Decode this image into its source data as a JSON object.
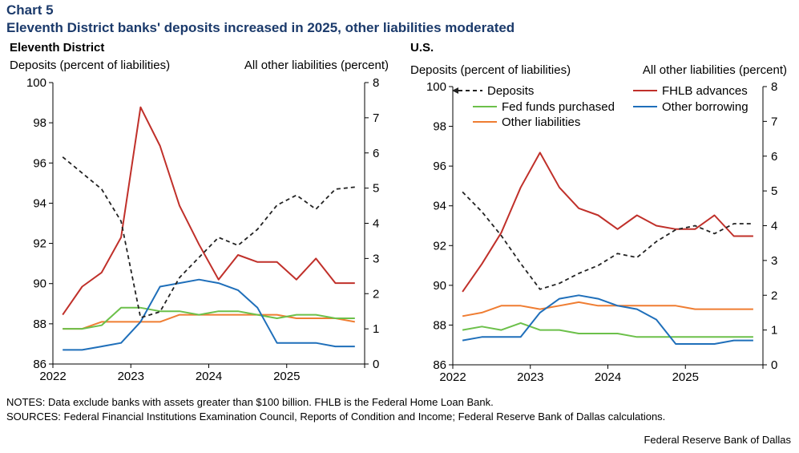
{
  "header": {
    "chart_number": "Chart 5",
    "title": "Eleventh District banks' deposits increased in 2025, other liabilities moderated"
  },
  "notes": "NOTES: Data exclude banks with assets greater than $100 billion. FHLB is the Federal Home Loan Bank.",
  "sources": "SOURCES: Federal Financial Institutions Examination Council, Reports of Condition and Income; Federal Reserve Bank of Dallas calculations.",
  "credit": "Federal Reserve Bank of Dallas",
  "colors": {
    "deposits": "#222222",
    "fhlb": "#c0302a",
    "fed_funds": "#6cc04a",
    "other_borrowing": "#1f6fba",
    "other_liabilities": "#ef7d32"
  },
  "chart_data": [
    {
      "type": "line",
      "panel_title": "Eleventh District",
      "y_left_label": "Deposits (percent of liabilities)",
      "y_right_label": "All other liabilities (percent)",
      "y_left_lim": [
        86,
        100
      ],
      "y_left_ticks": [
        "86",
        "88",
        "90",
        "92",
        "94",
        "96",
        "98",
        "100"
      ],
      "y_right_lim": [
        0,
        8
      ],
      "y_right_ticks": [
        "0",
        "1",
        "2",
        "3",
        "4",
        "5",
        "6",
        "7",
        "8"
      ],
      "x_ticks": [
        "2022",
        "2023",
        "2024",
        "2025"
      ],
      "x": [
        "2022Q1",
        "2022Q2",
        "2022Q3",
        "2022Q4",
        "2023Q1",
        "2023Q2",
        "2023Q3",
        "2023Q4",
        "2024Q1",
        "2024Q2",
        "2024Q3",
        "2024Q4",
        "2025Q1",
        "2025Q2",
        "2025Q3",
        "2025Q4"
      ],
      "grid": false,
      "legend": "none",
      "series": [
        {
          "key": "deposits",
          "axis": "left",
          "dashed": true,
          "values": [
            96.3,
            95.5,
            94.7,
            93.1,
            88.3,
            88.6,
            90.3,
            91.3,
            92.3,
            91.9,
            92.7,
            93.9,
            94.4,
            93.7,
            94.7,
            94.8
          ]
        },
        {
          "key": "fhlb",
          "axis": "right",
          "values": [
            1.4,
            2.2,
            2.6,
            3.6,
            7.3,
            6.2,
            4.5,
            3.4,
            2.4,
            3.1,
            2.9,
            2.9,
            2.4,
            3.0,
            2.3,
            2.3
          ]
        },
        {
          "key": "fed_funds",
          "axis": "right",
          "values": [
            1.0,
            1.0,
            1.1,
            1.6,
            1.6,
            1.5,
            1.5,
            1.4,
            1.5,
            1.5,
            1.4,
            1.3,
            1.4,
            1.4,
            1.3,
            1.3
          ]
        },
        {
          "key": "other_borrowing",
          "axis": "right",
          "values": [
            0.4,
            0.4,
            0.5,
            0.6,
            1.2,
            2.2,
            2.3,
            2.4,
            2.3,
            2.1,
            1.6,
            0.6,
            0.6,
            0.6,
            0.5,
            0.5
          ]
        },
        {
          "key": "other_liabilities",
          "axis": "right",
          "values": [
            1.0,
            1.0,
            1.2,
            1.2,
            1.2,
            1.2,
            1.4,
            1.4,
            1.4,
            1.4,
            1.4,
            1.4,
            1.3,
            1.3,
            1.3,
            1.2
          ]
        }
      ]
    },
    {
      "type": "line",
      "panel_title": "U.S.",
      "y_left_label": "Deposits (percent of liabilities)",
      "y_right_label": "All other liabilities (percent)",
      "y_left_lim": [
        86,
        100
      ],
      "y_left_ticks": [
        "86",
        "88",
        "90",
        "92",
        "94",
        "96",
        "98",
        "100"
      ],
      "y_right_lim": [
        0,
        8
      ],
      "y_right_ticks": [
        "0",
        "1",
        "2",
        "3",
        "4",
        "5",
        "6",
        "7",
        "8"
      ],
      "x_ticks": [
        "2022",
        "2023",
        "2024",
        "2025"
      ],
      "x": [
        "2022Q1",
        "2022Q2",
        "2022Q3",
        "2022Q4",
        "2023Q1",
        "2023Q2",
        "2023Q3",
        "2023Q4",
        "2024Q1",
        "2024Q2",
        "2024Q3",
        "2024Q4",
        "2025Q1",
        "2025Q2",
        "2025Q3",
        "2025Q4"
      ],
      "grid": false,
      "legend": "top",
      "legend_entries": [
        {
          "key": "deposits",
          "label": "Deposits"
        },
        {
          "key": "fhlb",
          "label": "FHLB advances"
        },
        {
          "key": "fed_funds",
          "label": "Fed funds purchased"
        },
        {
          "key": "other_borrowing",
          "label": "Other borrowing"
        },
        {
          "key": "other_liabilities",
          "label": "Other liabilities"
        }
      ],
      "series": [
        {
          "key": "deposits",
          "axis": "left",
          "dashed": true,
          "values": [
            94.7,
            93.7,
            92.5,
            91.1,
            89.8,
            90.1,
            90.6,
            91.0,
            91.6,
            91.4,
            92.2,
            92.8,
            93.0,
            92.6,
            93.1,
            93.1
          ]
        },
        {
          "key": "fhlb",
          "axis": "right",
          "values": [
            2.1,
            2.9,
            3.8,
            5.1,
            6.1,
            5.1,
            4.5,
            4.3,
            3.9,
            4.3,
            4.0,
            3.9,
            3.9,
            4.3,
            3.7,
            3.7
          ]
        },
        {
          "key": "fed_funds",
          "axis": "right",
          "values": [
            1.0,
            1.1,
            1.0,
            1.2,
            1.0,
            1.0,
            0.9,
            0.9,
            0.9,
            0.8,
            0.8,
            0.8,
            0.8,
            0.8,
            0.8,
            0.8
          ]
        },
        {
          "key": "other_borrowing",
          "axis": "right",
          "values": [
            0.7,
            0.8,
            0.8,
            0.8,
            1.5,
            1.9,
            2.0,
            1.9,
            1.7,
            1.6,
            1.3,
            0.6,
            0.6,
            0.6,
            0.7,
            0.7
          ]
        },
        {
          "key": "other_liabilities",
          "axis": "right",
          "values": [
            1.4,
            1.5,
            1.7,
            1.7,
            1.6,
            1.7,
            1.8,
            1.7,
            1.7,
            1.7,
            1.7,
            1.7,
            1.6,
            1.6,
            1.6,
            1.6
          ]
        }
      ]
    }
  ]
}
